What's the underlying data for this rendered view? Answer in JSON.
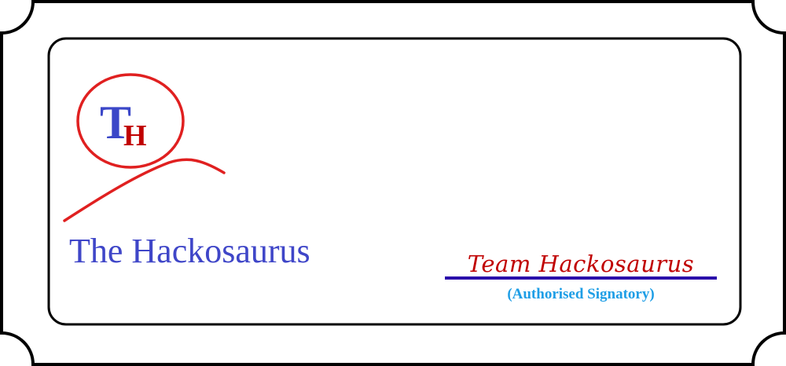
{
  "logo": {
    "letter_t": "T",
    "letter_h": "H"
  },
  "brand": {
    "name": "The Hackosaurus"
  },
  "signature": {
    "name": "Team Hackosaurus",
    "caption": "(Authorised Signatory)"
  },
  "colors": {
    "frame": "#000000",
    "logo_ring": "#e02020",
    "letter_t": "#3b47c8",
    "letter_h": "#c00000",
    "brand_text": "#3f46c8",
    "signature_text": "#c00000",
    "signature_line": "#2a0eaa",
    "caption_text": "#1e9ee6"
  }
}
